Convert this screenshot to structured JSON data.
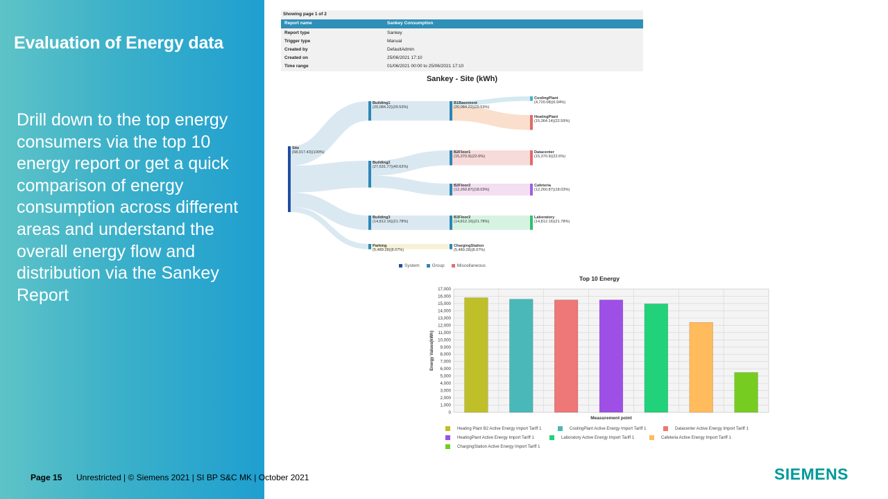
{
  "slide": {
    "title": "Evaluation of Energy data",
    "body": "Drill down to the top energy consumers via the top 10 energy report or get a quick comparison of energy consumption across different areas and understand the overall energy flow and distribution via the Sankey Report"
  },
  "footer": {
    "page": "Page 15",
    "text": "Unrestricted | © Siemens 2021 | SI BP S&C MK | October 2021",
    "logo": "SIEMENS"
  },
  "report": {
    "showing": "Showing page  1  of  2",
    "header": {
      "label": "Report name",
      "value": "Sankey Consumption"
    },
    "rows": [
      {
        "label": "Report type",
        "value": "Sankey"
      },
      {
        "label": "Trigger type",
        "value": "Manual"
      },
      {
        "label": "Created by",
        "value": "DefaultAdmin"
      },
      {
        "label": "Created on",
        "value": "25/06/2021 17:10"
      },
      {
        "label": "Time range",
        "value": "01/06/2021 00:00 to 25/06/2021 17:10"
      }
    ]
  },
  "colors": {
    "system": "#1f4fa3",
    "group": "#2e86b5",
    "misc": "#e07070",
    "teal_brand": "#009999"
  },
  "chart_data": [
    {
      "type": "sankey",
      "title": "Sankey - Site (kWh)",
      "nodes": [
        {
          "id": "site",
          "name": "Site",
          "value_label": "(68,017.43)(100%)"
        },
        {
          "id": "b1",
          "name": "Building1",
          "value_label": "(20,084.22)(29.53%)"
        },
        {
          "id": "b2",
          "name": "Building2",
          "value_label": "(27,631.77)(40.62%)"
        },
        {
          "id": "b3",
          "name": "Building3",
          "value_label": "(14,812.16)(21.78%)"
        },
        {
          "id": "parking",
          "name": "Parking",
          "value_label": "(5,489.28)(8.07%)"
        },
        {
          "id": "b1basement",
          "name": "B1Basement",
          "value_label": "(20,084.22)(29.53%)"
        },
        {
          "id": "b2floor1",
          "name": "B2Floor1",
          "value_label": "(15,370.9)(22.6%)"
        },
        {
          "id": "b2floor2",
          "name": "B2Floor2",
          "value_label": "(12,260.87)(18.03%)"
        },
        {
          "id": "b3floor2",
          "name": "B3Floor2",
          "value_label": "(14,812.16)(21.78%)"
        },
        {
          "id": "charging",
          "name": "ChargingStation",
          "value_label": "(5,489.28)(8.07%)"
        },
        {
          "id": "cooling",
          "name": "CoolingPlant",
          "value_label": "(4,720.08)(6.94%)"
        },
        {
          "id": "heating",
          "name": "HeatingPlant",
          "value_label": "(15,364.14)(22.59%)"
        },
        {
          "id": "datacenter",
          "name": "Datacenter",
          "value_label": "(15,370.9)(22.6%)"
        },
        {
          "id": "cafeteria",
          "name": "Cafeteria",
          "value_label": "(12,260.87)(18.03%)"
        },
        {
          "id": "laboratory",
          "name": "Laboratory",
          "value_label": "(14,812.16)(21.78%)"
        }
      ],
      "links": [
        {
          "source": "site",
          "target": "b1",
          "value": 20084.22
        },
        {
          "source": "site",
          "target": "b2",
          "value": 27631.77
        },
        {
          "source": "site",
          "target": "b3",
          "value": 14812.16
        },
        {
          "source": "site",
          "target": "parking",
          "value": 5489.28
        },
        {
          "source": "b1",
          "target": "b1basement",
          "value": 20084.22
        },
        {
          "source": "b2",
          "target": "b2floor1",
          "value": 15370.9
        },
        {
          "source": "b2",
          "target": "b2floor2",
          "value": 12260.87
        },
        {
          "source": "b3",
          "target": "b3floor2",
          "value": 14812.16
        },
        {
          "source": "parking",
          "target": "charging",
          "value": 5489.28
        },
        {
          "source": "b1basement",
          "target": "cooling",
          "value": 4720.08
        },
        {
          "source": "b1basement",
          "target": "heating",
          "value": 15364.14
        },
        {
          "source": "b2floor1",
          "target": "datacenter",
          "value": 15370.9
        },
        {
          "source": "b2floor2",
          "target": "cafeteria",
          "value": 12260.87
        },
        {
          "source": "b3floor2",
          "target": "laboratory",
          "value": 14812.16
        }
      ],
      "legend": [
        "System",
        "Group",
        "Miscellaneous"
      ]
    },
    {
      "type": "bar",
      "title": "Top 10 Energy",
      "xlabel": "Measurement point",
      "ylabel": "Energy Values(kWh)",
      "ylim": [
        0,
        17000
      ],
      "yticks": [
        "0",
        "1,000",
        "2,000",
        "3,000",
        "4,000",
        "5,000",
        "6,000",
        "7,000",
        "8,000",
        "9,000",
        "10,000",
        "11,000",
        "12,000",
        "13,000",
        "14,000",
        "15,000",
        "16,000",
        "17,000"
      ],
      "grid": true,
      "categories": [
        "Heating Plant B2 Active Energy Import Tariff 1",
        "CoolingPlant Active Energy Import Tariff 1",
        "Datacenter Active Energy Import Tariff 1",
        "HeatingPlant Active Energy Import Tariff 1",
        "Laboratory Active Energy Import Tariff 1",
        "Cafeteria Active Energy Import Tariff 1",
        "ChargingStation Active Energy Import Tariff 1"
      ],
      "values": [
        15800,
        15600,
        15500,
        15500,
        14950,
        12400,
        5500
      ],
      "colors": [
        "#bfbf2a",
        "#4ab8b8",
        "#ee7777",
        "#9e4fe6",
        "#22d27a",
        "#ffbb5c",
        "#77cc22"
      ]
    }
  ]
}
